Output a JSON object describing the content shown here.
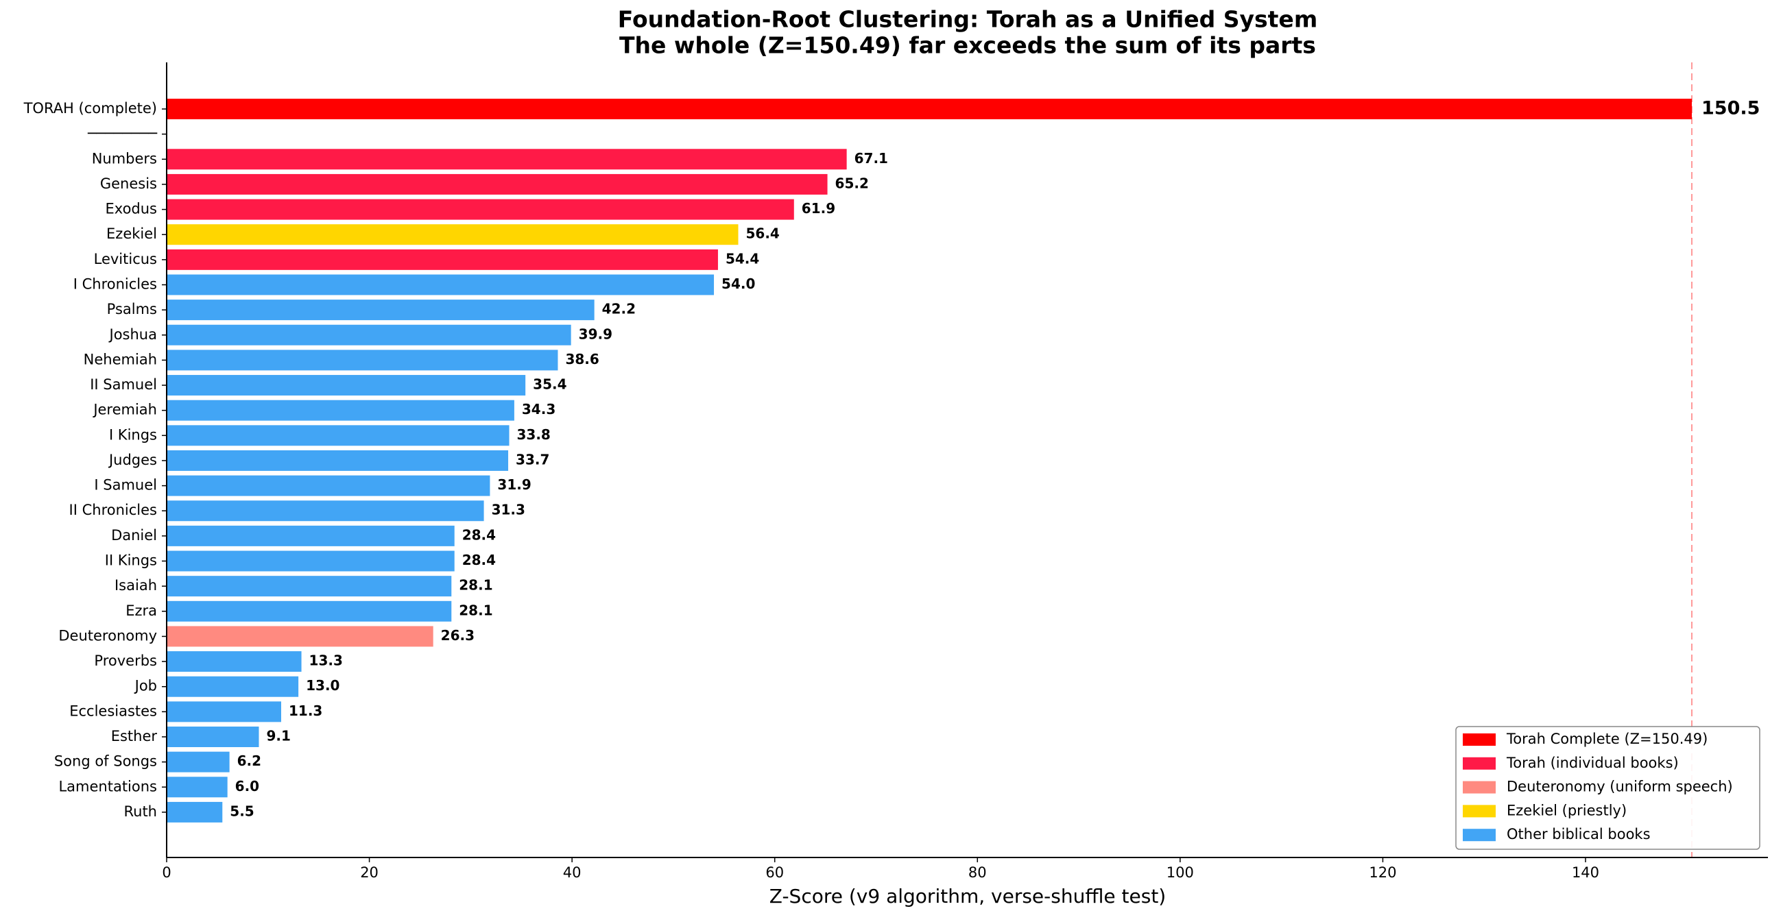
{
  "chart_data": {
    "type": "barh",
    "title": [
      "Foundation-Root Clustering: Torah as a Unified System",
      "The whole (Z=150.49) far exceeds the sum of its parts"
    ],
    "xlabel": "Z-Score (v9 algorithm, verse-shuffle test)",
    "categories": [
      "TORAH (complete)",
      "────────",
      "Numbers",
      "Genesis",
      "Exodus",
      "Ezekiel",
      "Leviticus",
      "I Chronicles",
      "Psalms",
      "Joshua",
      "Nehemiah",
      "II Samuel",
      "Jeremiah",
      "I Kings",
      "Judges",
      "I Samuel",
      "II Chronicles",
      "Daniel",
      "II Kings",
      "Isaiah",
      "Ezra",
      "Deuteronomy",
      "Proverbs",
      "Job",
      "Ecclesiastes",
      "Esther",
      "Song of Songs",
      "Lamentations",
      "Ruth"
    ],
    "values": [
      150.49,
      null,
      67.1,
      65.2,
      61.9,
      56.4,
      54.4,
      54.0,
      42.2,
      39.9,
      38.6,
      35.4,
      34.3,
      33.8,
      33.7,
      31.9,
      31.3,
      28.4,
      28.4,
      28.1,
      28.1,
      26.3,
      13.3,
      13.0,
      11.3,
      9.1,
      6.2,
      6.0,
      5.5
    ],
    "value_labels": [
      "150.5",
      null,
      "67.1",
      "65.2",
      "61.9",
      "56.4",
      "54.4",
      "54.0",
      "42.2",
      "39.9",
      "38.6",
      "35.4",
      "34.3",
      "33.8",
      "33.7",
      "31.9",
      "31.3",
      "28.4",
      "28.4",
      "28.1",
      "28.1",
      "26.3",
      "13.3",
      "13.0",
      "11.3",
      "9.1",
      "6.2",
      "6.0",
      "5.5"
    ],
    "colors": [
      "#ff0000",
      null,
      "#ff1a47",
      "#ff1a47",
      "#ff1a47",
      "#ffd600",
      "#ff1a47",
      "#42a5f5",
      "#42a5f5",
      "#42a5f5",
      "#42a5f5",
      "#42a5f5",
      "#42a5f5",
      "#42a5f5",
      "#42a5f5",
      "#42a5f5",
      "#42a5f5",
      "#42a5f5",
      "#42a5f5",
      "#42a5f5",
      "#42a5f5",
      "#ff8a80",
      "#42a5f5",
      "#42a5f5",
      "#42a5f5",
      "#42a5f5",
      "#42a5f5",
      "#42a5f5",
      "#42a5f5"
    ],
    "xlim": [
      0,
      158
    ],
    "xticks": [
      0,
      20,
      40,
      60,
      80,
      100,
      120,
      140
    ],
    "grid": false,
    "reference_line": {
      "value": 150.49,
      "color": "#ff9999"
    },
    "legend_position": "lower right",
    "legend": [
      {
        "label": "Torah Complete (Z=150.49)",
        "color": "#ff0000"
      },
      {
        "label": "Torah (individual books)",
        "color": "#ff1a47"
      },
      {
        "label": "Deuteronomy (uniform speech)",
        "color": "#ff8a80"
      },
      {
        "label": "Ezekiel (priestly)",
        "color": "#ffd600"
      },
      {
        "label": "Other biblical books",
        "color": "#42a5f5"
      }
    ]
  }
}
